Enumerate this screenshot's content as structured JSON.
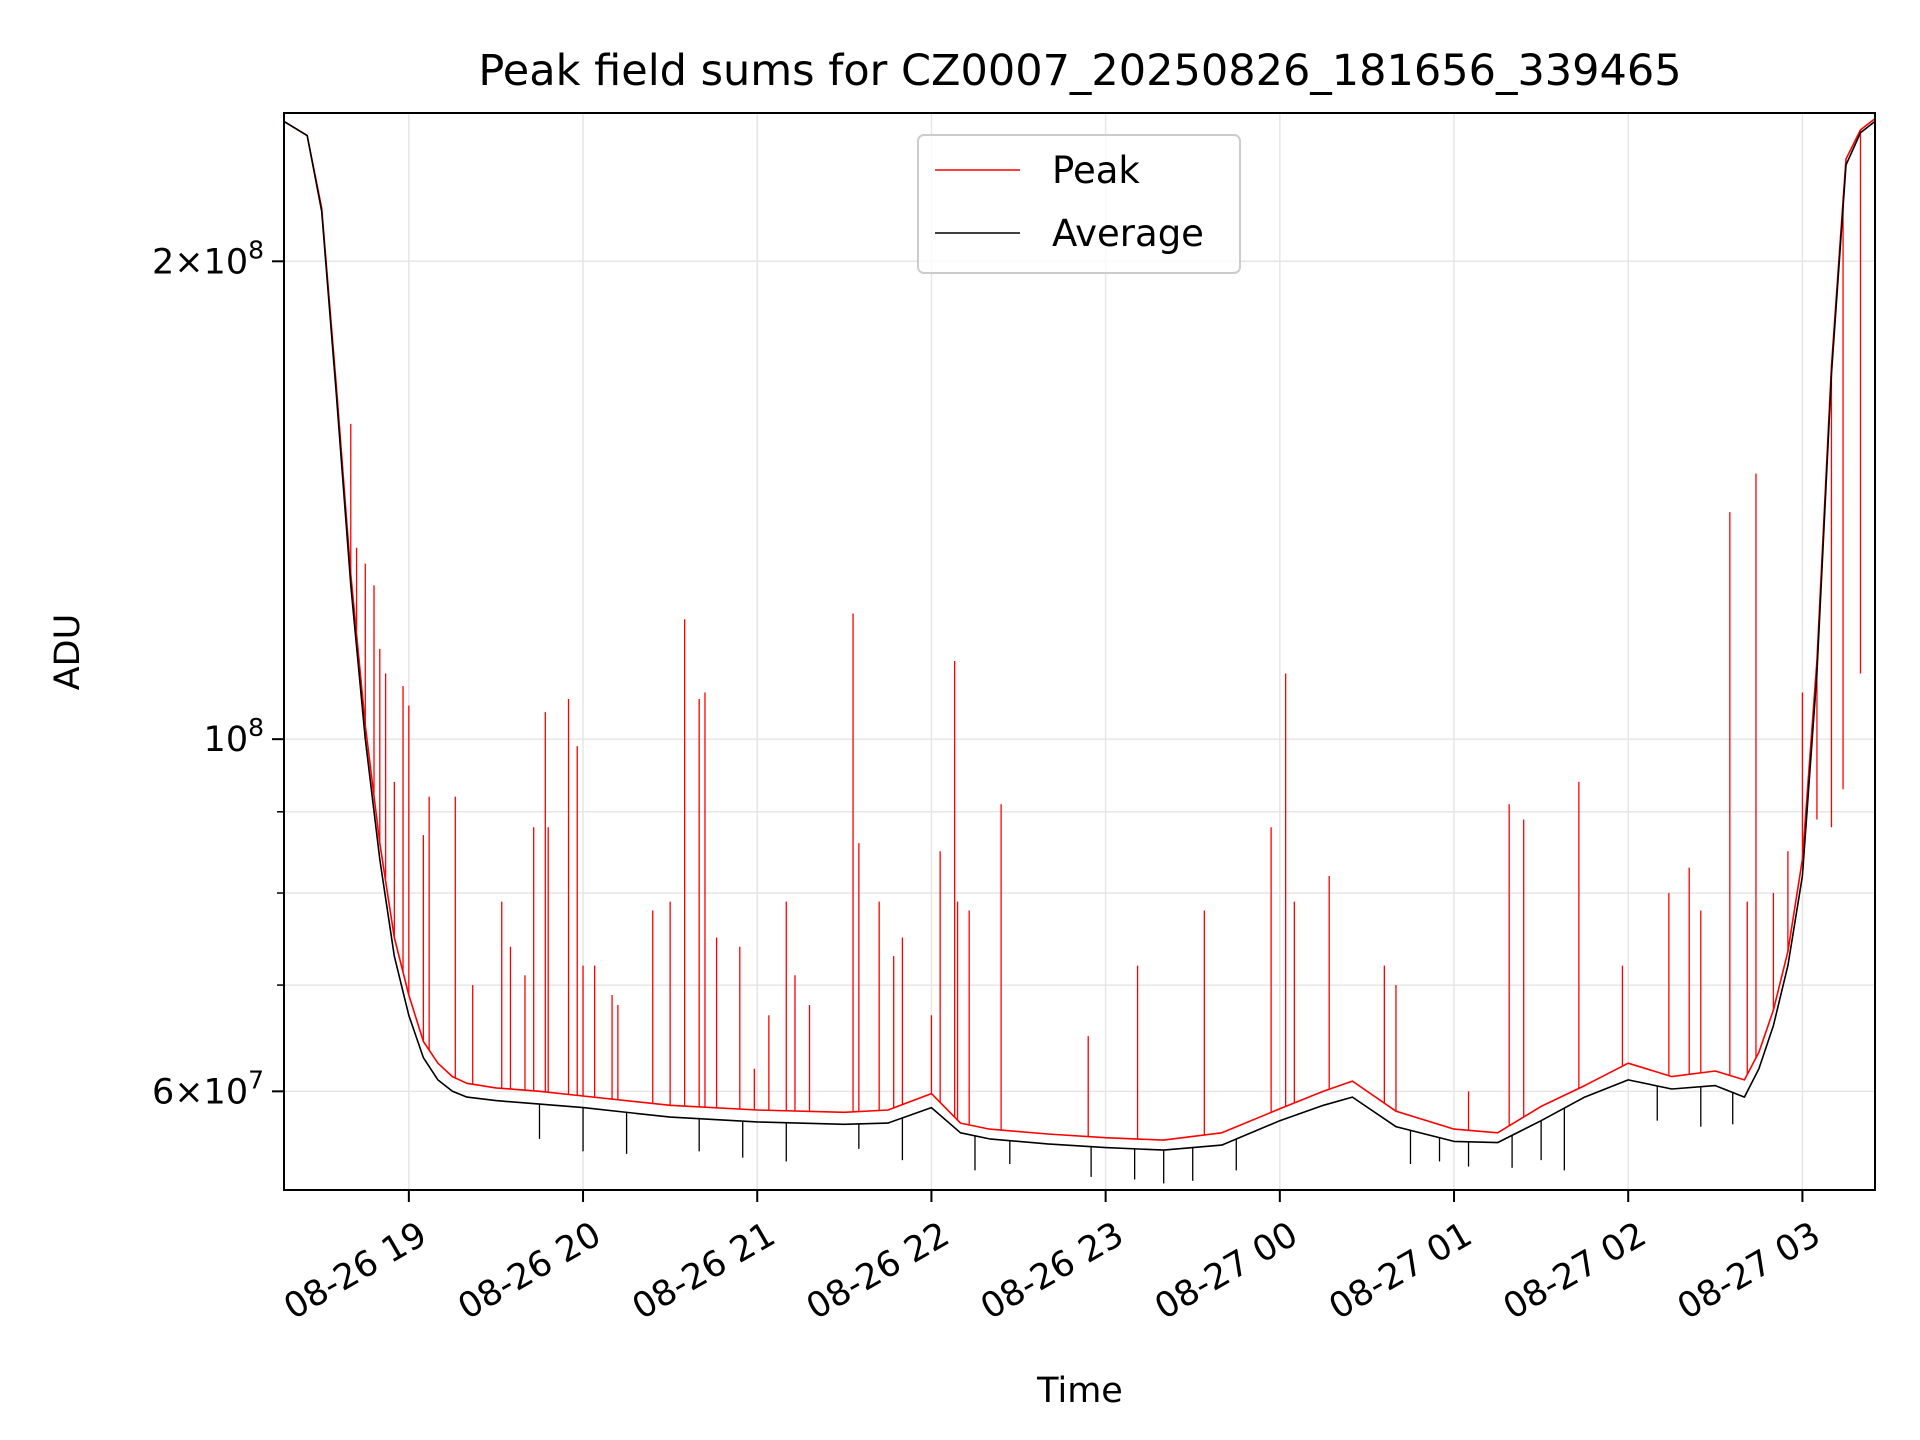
{
  "chart_data": {
    "type": "line",
    "title": "Peak field sums for CZ0007_20250826_181656_339465",
    "xlabel": "Time",
    "ylabel": "ADU",
    "yscale": "log",
    "ylim": [
      52000000,
      248000000
    ],
    "xlim": [
      "2025-08-26 18:17",
      "2025-08-27 03:25"
    ],
    "grid": true,
    "legend_position": "upper center",
    "x_ticks": [
      {
        "value": "2025-08-26 19:00",
        "label": "08-26 19"
      },
      {
        "value": "2025-08-26 20:00",
        "label": "08-26 20"
      },
      {
        "value": "2025-08-26 21:00",
        "label": "08-26 21"
      },
      {
        "value": "2025-08-26 22:00",
        "label": "08-26 22"
      },
      {
        "value": "2025-08-26 23:00",
        "label": "08-26 23"
      },
      {
        "value": "2025-08-27 00:00",
        "label": "08-27 00"
      },
      {
        "value": "2025-08-27 01:00",
        "label": "08-27 01"
      },
      {
        "value": "2025-08-27 02:00",
        "label": "08-27 02"
      },
      {
        "value": "2025-08-27 03:00",
        "label": "08-27 03"
      }
    ],
    "y_major_ticks": [
      {
        "value": 60000000,
        "mant": "6",
        "exp": "7"
      },
      {
        "value": 100000000,
        "mant": "",
        "exp": "8"
      },
      {
        "value": 200000000,
        "mant": "2",
        "exp": "8"
      }
    ],
    "y_minor_ticks": [
      70000000,
      80000000,
      90000000
    ],
    "series": [
      {
        "name": "Average",
        "color": "#000000",
        "x": [
          "2025-08-26 18:17",
          "2025-08-26 18:25",
          "2025-08-26 18:30",
          "2025-08-26 18:35",
          "2025-08-26 18:40",
          "2025-08-26 18:45",
          "2025-08-26 18:50",
          "2025-08-26 18:55",
          "2025-08-26 19:00",
          "2025-08-26 19:05",
          "2025-08-26 19:10",
          "2025-08-26 19:15",
          "2025-08-26 19:20",
          "2025-08-26 19:30",
          "2025-08-26 19:45",
          "2025-08-26 20:00",
          "2025-08-26 20:30",
          "2025-08-26 21:00",
          "2025-08-26 21:30",
          "2025-08-26 21:45",
          "2025-08-26 22:00",
          "2025-08-26 22:10",
          "2025-08-26 22:20",
          "2025-08-26 22:40",
          "2025-08-26 23:00",
          "2025-08-26 23:20",
          "2025-08-26 23:40",
          "2025-08-27 00:00",
          "2025-08-27 00:15",
          "2025-08-27 00:25",
          "2025-08-27 00:40",
          "2025-08-27 01:00",
          "2025-08-27 01:15",
          "2025-08-27 01:30",
          "2025-08-27 01:45",
          "2025-08-27 02:00",
          "2025-08-27 02:15",
          "2025-08-27 02:30",
          "2025-08-27 02:40",
          "2025-08-27 02:45",
          "2025-08-27 02:50",
          "2025-08-27 02:55",
          "2025-08-27 03:00",
          "2025-08-27 03:05",
          "2025-08-27 03:10",
          "2025-08-27 03:15",
          "2025-08-27 03:20",
          "2025-08-27 03:25"
        ],
        "y": [
          245000000,
          240000000,
          215000000,
          165000000,
          125000000,
          100000000,
          84000000,
          73000000,
          67000000,
          63000000,
          61000000,
          60000000,
          59500000,
          59200000,
          58900000,
          58600000,
          57800000,
          57400000,
          57200000,
          57300000,
          58600000,
          56500000,
          56000000,
          55600000,
          55300000,
          55100000,
          55500000,
          57500000,
          58800000,
          59500000,
          57000000,
          55800000,
          55700000,
          57500000,
          59500000,
          61000000,
          60200000,
          60500000,
          59500000,
          62000000,
          66000000,
          72000000,
          82000000,
          110000000,
          170000000,
          230000000,
          241000000,
          245000000
        ]
      },
      {
        "name": "Peak",
        "color": "#ff0000",
        "x": [
          "2025-08-26 18:17",
          "2025-08-26 18:25",
          "2025-08-26 18:30",
          "2025-08-26 18:35",
          "2025-08-26 18:40",
          "2025-08-26 18:45",
          "2025-08-26 18:50",
          "2025-08-26 18:55",
          "2025-08-26 19:00",
          "2025-08-26 19:05",
          "2025-08-26 19:10",
          "2025-08-26 19:15",
          "2025-08-26 19:20",
          "2025-08-26 19:30",
          "2025-08-26 19:45",
          "2025-08-26 20:00",
          "2025-08-26 20:30",
          "2025-08-26 21:00",
          "2025-08-26 21:30",
          "2025-08-26 21:45",
          "2025-08-26 22:00",
          "2025-08-26 22:10",
          "2025-08-26 22:20",
          "2025-08-26 22:40",
          "2025-08-26 23:00",
          "2025-08-26 23:20",
          "2025-08-26 23:40",
          "2025-08-27 00:00",
          "2025-08-27 00:15",
          "2025-08-27 00:25",
          "2025-08-27 00:40",
          "2025-08-27 01:00",
          "2025-08-27 01:15",
          "2025-08-27 01:30",
          "2025-08-27 01:45",
          "2025-08-27 02:00",
          "2025-08-27 02:15",
          "2025-08-27 02:30",
          "2025-08-27 02:40",
          "2025-08-27 02:45",
          "2025-08-27 02:50",
          "2025-08-27 02:55",
          "2025-08-27 03:00",
          "2025-08-27 03:05",
          "2025-08-27 03:10",
          "2025-08-27 03:15",
          "2025-08-27 03:20",
          "2025-08-27 03:25"
        ],
        "y": [
          245000000,
          240000000,
          216000000,
          167000000,
          127000000,
          102000000,
          86000000,
          75000000,
          69000000,
          64500000,
          62500000,
          61300000,
          60700000,
          60300000,
          60000000,
          59600000,
          58800000,
          58400000,
          58200000,
          58400000,
          59800000,
          57300000,
          56800000,
          56400000,
          56100000,
          55900000,
          56500000,
          58500000,
          60000000,
          60900000,
          58300000,
          56800000,
          56500000,
          58700000,
          60500000,
          62500000,
          61300000,
          61800000,
          61000000,
          63500000,
          67500000,
          73500000,
          84000000,
          112000000,
          172000000,
          232000000,
          242000000,
          246000000
        ]
      }
    ],
    "peak_spikes": [
      {
        "x": "2025-08-26 18:40",
        "y": 158000000
      },
      {
        "x": "2025-08-26 18:42",
        "y": 132000000
      },
      {
        "x": "2025-08-26 18:45",
        "y": 129000000
      },
      {
        "x": "2025-08-26 18:48",
        "y": 125000000
      },
      {
        "x": "2025-08-26 18:50",
        "y": 114000000
      },
      {
        "x": "2025-08-26 18:52",
        "y": 110000000
      },
      {
        "x": "2025-08-26 18:55",
        "y": 94000000
      },
      {
        "x": "2025-08-26 18:58",
        "y": 108000000
      },
      {
        "x": "2025-08-26 19:00",
        "y": 105000000
      },
      {
        "x": "2025-08-26 19:05",
        "y": 87000000
      },
      {
        "x": "2025-08-26 19:07",
        "y": 92000000
      },
      {
        "x": "2025-08-26 19:16",
        "y": 92000000
      },
      {
        "x": "2025-08-26 19:22",
        "y": 70000000
      },
      {
        "x": "2025-08-26 19:32",
        "y": 79000000
      },
      {
        "x": "2025-08-26 19:35",
        "y": 74000000
      },
      {
        "x": "2025-08-26 19:40",
        "y": 71000000
      },
      {
        "x": "2025-08-26 19:43",
        "y": 88000000
      },
      {
        "x": "2025-08-26 19:47",
        "y": 104000000
      },
      {
        "x": "2025-08-26 19:48",
        "y": 88000000
      },
      {
        "x": "2025-08-26 19:55",
        "y": 106000000
      },
      {
        "x": "2025-08-26 19:58",
        "y": 99000000
      },
      {
        "x": "2025-08-26 20:00",
        "y": 72000000
      },
      {
        "x": "2025-08-26 20:04",
        "y": 72000000
      },
      {
        "x": "2025-08-26 20:10",
        "y": 69000000
      },
      {
        "x": "2025-08-26 20:12",
        "y": 68000000
      },
      {
        "x": "2025-08-26 20:24",
        "y": 78000000
      },
      {
        "x": "2025-08-26 20:30",
        "y": 79000000
      },
      {
        "x": "2025-08-26 20:35",
        "y": 119000000
      },
      {
        "x": "2025-08-26 20:40",
        "y": 106000000
      },
      {
        "x": "2025-08-26 20:42",
        "y": 107000000
      },
      {
        "x": "2025-08-26 20:46",
        "y": 75000000
      },
      {
        "x": "2025-08-26 20:54",
        "y": 74000000
      },
      {
        "x": "2025-08-26 20:59",
        "y": 62000000
      },
      {
        "x": "2025-08-26 21:04",
        "y": 67000000
      },
      {
        "x": "2025-08-26 21:10",
        "y": 79000000
      },
      {
        "x": "2025-08-26 21:13",
        "y": 71000000
      },
      {
        "x": "2025-08-26 21:18",
        "y": 68000000
      },
      {
        "x": "2025-08-26 21:33",
        "y": 120000000
      },
      {
        "x": "2025-08-26 21:35",
        "y": 86000000
      },
      {
        "x": "2025-08-26 21:42",
        "y": 79000000
      },
      {
        "x": "2025-08-26 21:47",
        "y": 73000000
      },
      {
        "x": "2025-08-26 21:50",
        "y": 75000000
      },
      {
        "x": "2025-08-26 22:00",
        "y": 67000000
      },
      {
        "x": "2025-08-26 22:03",
        "y": 85000000
      },
      {
        "x": "2025-08-26 22:08",
        "y": 112000000
      },
      {
        "x": "2025-08-26 22:09",
        "y": 79000000
      },
      {
        "x": "2025-08-26 22:13",
        "y": 78000000
      },
      {
        "x": "2025-08-26 22:24",
        "y": 91000000
      },
      {
        "x": "2025-08-26 22:54",
        "y": 65000000
      },
      {
        "x": "2025-08-26 23:11",
        "y": 72000000
      },
      {
        "x": "2025-08-26 23:34",
        "y": 78000000
      },
      {
        "x": "2025-08-26 23:57",
        "y": 88000000
      },
      {
        "x": "2025-08-27 00:02",
        "y": 110000000
      },
      {
        "x": "2025-08-27 00:05",
        "y": 79000000
      },
      {
        "x": "2025-08-27 00:17",
        "y": 82000000
      },
      {
        "x": "2025-08-27 00:36",
        "y": 72000000
      },
      {
        "x": "2025-08-27 00:40",
        "y": 70000000
      },
      {
        "x": "2025-08-27 01:05",
        "y": 60000000
      },
      {
        "x": "2025-08-27 01:19",
        "y": 91000000
      },
      {
        "x": "2025-08-27 01:24",
        "y": 89000000
      },
      {
        "x": "2025-08-27 01:43",
        "y": 94000000
      },
      {
        "x": "2025-08-27 01:58",
        "y": 72000000
      },
      {
        "x": "2025-08-27 02:14",
        "y": 80000000
      },
      {
        "x": "2025-08-27 02:21",
        "y": 83000000
      },
      {
        "x": "2025-08-27 02:25",
        "y": 78000000
      },
      {
        "x": "2025-08-27 02:35",
        "y": 139000000
      },
      {
        "x": "2025-08-27 02:41",
        "y": 79000000
      },
      {
        "x": "2025-08-27 02:44",
        "y": 147000000
      },
      {
        "x": "2025-08-27 02:50",
        "y": 80000000
      },
      {
        "x": "2025-08-27 02:55",
        "y": 85000000
      },
      {
        "x": "2025-08-27 03:00",
        "y": 107000000
      },
      {
        "x": "2025-08-27 03:05",
        "y": 89000000
      },
      {
        "x": "2025-08-27 03:10",
        "y": 88000000
      },
      {
        "x": "2025-08-27 03:14",
        "y": 93000000
      },
      {
        "x": "2025-08-27 03:20",
        "y": 110000000
      }
    ],
    "average_dips": [
      {
        "x": "2025-08-26 19:45",
        "y": 56000000
      },
      {
        "x": "2025-08-26 20:00",
        "y": 55000000
      },
      {
        "x": "2025-08-26 20:15",
        "y": 54800000
      },
      {
        "x": "2025-08-26 20:40",
        "y": 55000000
      },
      {
        "x": "2025-08-26 20:55",
        "y": 54500000
      },
      {
        "x": "2025-08-26 21:10",
        "y": 54200000
      },
      {
        "x": "2025-08-26 21:35",
        "y": 55200000
      },
      {
        "x": "2025-08-26 21:50",
        "y": 54300000
      },
      {
        "x": "2025-08-26 22:15",
        "y": 53500000
      },
      {
        "x": "2025-08-26 22:27",
        "y": 54000000
      },
      {
        "x": "2025-08-26 22:55",
        "y": 53000000
      },
      {
        "x": "2025-08-26 23:10",
        "y": 52800000
      },
      {
        "x": "2025-08-26 23:20",
        "y": 52500000
      },
      {
        "x": "2025-08-26 23:30",
        "y": 52700000
      },
      {
        "x": "2025-08-26 23:45",
        "y": 53500000
      },
      {
        "x": "2025-08-27 00:45",
        "y": 54000000
      },
      {
        "x": "2025-08-27 00:55",
        "y": 54200000
      },
      {
        "x": "2025-08-27 01:05",
        "y": 53800000
      },
      {
        "x": "2025-08-27 01:20",
        "y": 53700000
      },
      {
        "x": "2025-08-27 01:30",
        "y": 54300000
      },
      {
        "x": "2025-08-27 01:38",
        "y": 53500000
      },
      {
        "x": "2025-08-27 02:10",
        "y": 57500000
      },
      {
        "x": "2025-08-27 02:25",
        "y": 57000000
      },
      {
        "x": "2025-08-27 02:36",
        "y": 57200000
      }
    ]
  }
}
